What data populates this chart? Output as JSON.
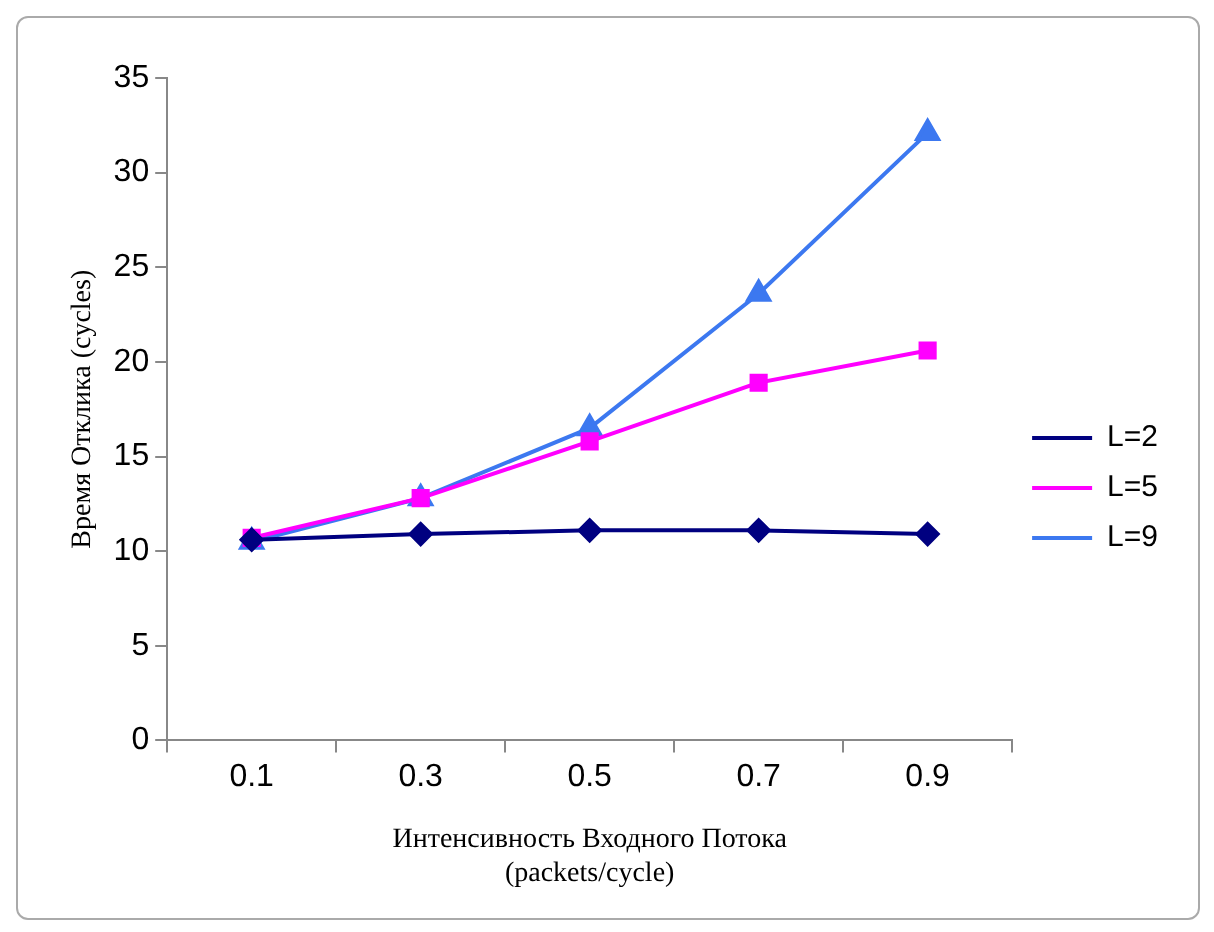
{
  "chart_data": {
    "type": "line",
    "xlabel": [
      "Интенсивность Входного Потока",
      "(packets/cycle)"
    ],
    "ylabel": "Время Отклика (cycles)",
    "categories": [
      "0.1",
      "0.3",
      "0.5",
      "0.7",
      "0.9"
    ],
    "series": [
      {
        "name": "L=2",
        "color": "#000080",
        "marker": "diamond",
        "values": [
          10.6,
          10.9,
          11.1,
          11.1,
          10.9
        ]
      },
      {
        "name": "L=5",
        "color": "#ff00ff",
        "marker": "square",
        "values": [
          10.7,
          12.8,
          15.8,
          18.9,
          20.6
        ]
      },
      {
        "name": "L=9",
        "color": "#3c78f0",
        "marker": "triangle",
        "values": [
          10.5,
          12.8,
          16.5,
          23.6,
          32.1
        ]
      }
    ],
    "ylim": [
      0,
      35
    ],
    "yticks": [
      0,
      5,
      10,
      15,
      20,
      25,
      30,
      35
    ],
    "grid": false,
    "legend": "right",
    "line_style": "solid"
  }
}
